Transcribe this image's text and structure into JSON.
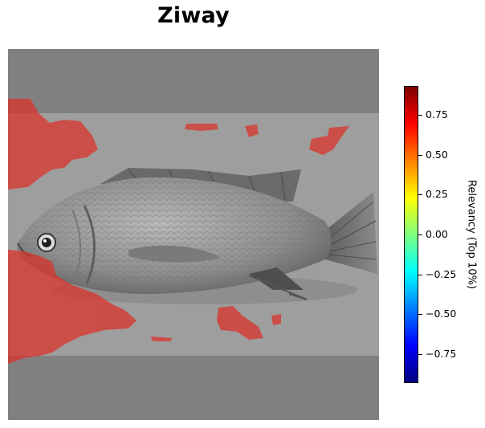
{
  "title": "Ziway",
  "image": {
    "subject": "fish",
    "background_color": "#808080",
    "overlay_color": "#d9342b"
  },
  "colorbar": {
    "label": "Relevancy (Top 10%)",
    "colormap": "jet",
    "range": [
      -0.93,
      0.93
    ],
    "ticks": [
      {
        "value": 0.75,
        "label": "0.75"
      },
      {
        "value": 0.5,
        "label": "0.50"
      },
      {
        "value": 0.25,
        "label": "0.25"
      },
      {
        "value": 0.0,
        "label": "0.00"
      },
      {
        "value": -0.25,
        "label": "−0.25"
      },
      {
        "value": -0.5,
        "label": "−0.50"
      },
      {
        "value": -0.75,
        "label": "−0.75"
      }
    ]
  }
}
